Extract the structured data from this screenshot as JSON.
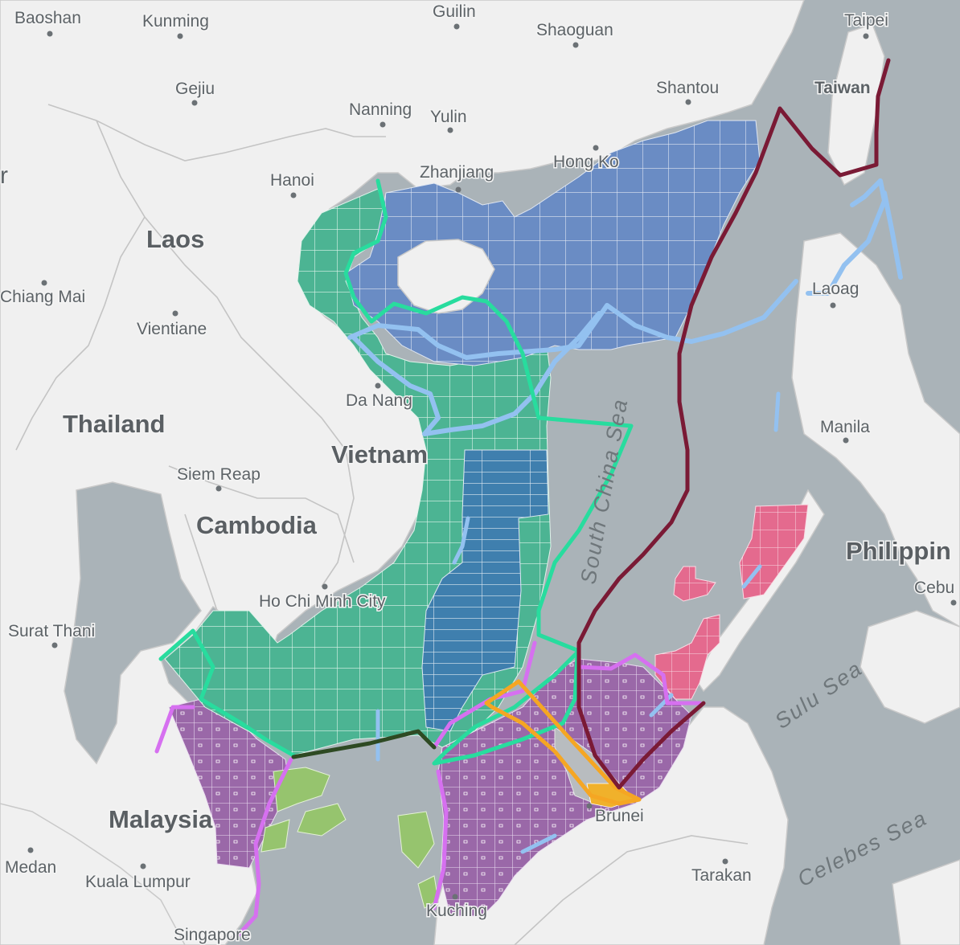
{
  "map": {
    "country_labels": [
      {
        "id": "laos",
        "text": "Laos"
      },
      {
        "id": "thailand",
        "text": "Thailand"
      },
      {
        "id": "vietnam",
        "text": "Vietnam"
      },
      {
        "id": "cambodia",
        "text": "Cambodia"
      },
      {
        "id": "malaysia",
        "text": "Malaysia"
      },
      {
        "id": "philippines",
        "text": "Philippin"
      }
    ],
    "sea_labels": [
      {
        "id": "south-china-sea",
        "text": "South China Sea"
      },
      {
        "id": "sulu-sea",
        "text": "Sulu Sea"
      },
      {
        "id": "celebes-sea",
        "text": "Celebes Sea"
      }
    ],
    "city_labels": [
      {
        "id": "baoshan",
        "text": "Baoshan"
      },
      {
        "id": "kunming",
        "text": "Kunming"
      },
      {
        "id": "guilin",
        "text": "Guilin"
      },
      {
        "id": "shaoguan",
        "text": "Shaoguan"
      },
      {
        "id": "taipei",
        "text": "Taipei"
      },
      {
        "id": "gejiu",
        "text": "Gejiu"
      },
      {
        "id": "nanning",
        "text": "Nanning"
      },
      {
        "id": "yulin",
        "text": "Yulin"
      },
      {
        "id": "shantou",
        "text": "Shantou"
      },
      {
        "id": "taiwan",
        "text": "Taiwan"
      },
      {
        "id": "hanoi",
        "text": "Hanoi"
      },
      {
        "id": "zhanjiang",
        "text": "Zhanjiang"
      },
      {
        "id": "hong-kong",
        "text": "Hong Ko"
      },
      {
        "id": "chiang-mai",
        "text": "Chiang Mai"
      },
      {
        "id": "vientiane",
        "text": "Vientiane"
      },
      {
        "id": "laoag",
        "text": "Laoag"
      },
      {
        "id": "da-nang",
        "text": "Da Nang"
      },
      {
        "id": "manila",
        "text": "Manila"
      },
      {
        "id": "siem-reap",
        "text": "Siem Reap"
      },
      {
        "id": "cebu",
        "text": "Cebu"
      },
      {
        "id": "ho-chi-minh",
        "text": "Ho Chi Minh City"
      },
      {
        "id": "surat-thani",
        "text": "Surat Thani"
      },
      {
        "id": "brunei",
        "text": "Brunei"
      },
      {
        "id": "medan",
        "text": "Medan"
      },
      {
        "id": "kuala-lumpur",
        "text": "Kuala Lumpur"
      },
      {
        "id": "tarakan",
        "text": "Tarakan"
      },
      {
        "id": "kuching",
        "text": "Kuching"
      },
      {
        "id": "singapore",
        "text": "Singapore"
      },
      {
        "id": "edge-r",
        "text": "r"
      }
    ],
    "colors": {
      "sea": "#aab3b8",
      "land": "#f0f0f0",
      "border": "#c4c4c4",
      "china_blocks": "#6a8cc4",
      "vietnam_blocks": "#4cb493",
      "vietnam_deep_blocks": "#3f7fae",
      "malaysia_blocks": "#9a68a8",
      "philippines_blocks": "#e46a8e",
      "indonesia_blocks": "#96c46e",
      "brunei_blocks": "#f0b12b",
      "nine_dash_line": "#7a1a35",
      "vietnam_claim_line": "#28dc9e",
      "malaysia_claim_line": "#d670f0",
      "philippines_claim_line": "#93c1f0",
      "brunei_claim_line": "#f5a623",
      "joint_boundary_line": "#2e4a23"
    },
    "legend": []
  }
}
